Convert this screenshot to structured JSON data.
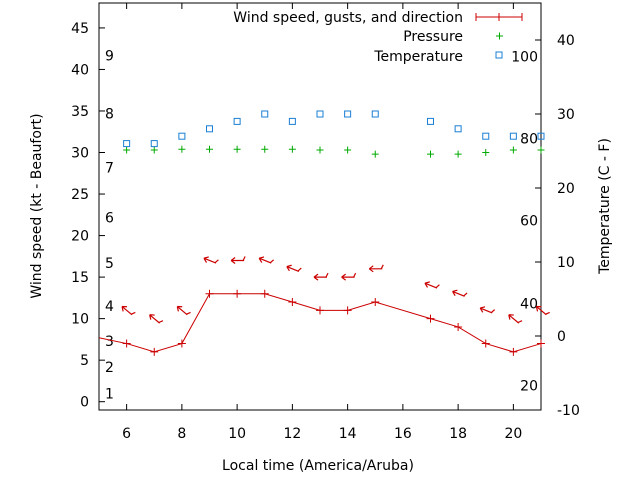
{
  "chart_data": {
    "type": "line",
    "xlabel": "Local time (America/Aruba)",
    "ylabel_left": "Wind speed (kt - Beaufort)",
    "ylabel_right": "Temperature (C - F)",
    "xlim": [
      5,
      21
    ],
    "ylim_left": [
      -1,
      48
    ],
    "ylim_right": [
      -10,
      45
    ],
    "x_ticks": [
      6,
      8,
      10,
      12,
      14,
      16,
      18,
      20
    ],
    "y_ticks_left": [
      0,
      5,
      10,
      15,
      20,
      25,
      30,
      35,
      40,
      45
    ],
    "y_ticks_right": [
      -10,
      0,
      10,
      20,
      30,
      40
    ],
    "beaufort_labels": [
      {
        "label": "1",
        "kt": 1.0
      },
      {
        "label": "2",
        "kt": 4.2
      },
      {
        "label": "3",
        "kt": 7.3
      },
      {
        "label": "4",
        "kt": 11.5
      },
      {
        "label": "5",
        "kt": 16.7
      },
      {
        "label": "6",
        "kt": 22.2
      },
      {
        "label": "7",
        "kt": 28.2
      },
      {
        "label": "8",
        "kt": 34.7
      },
      {
        "label": "9",
        "kt": 41.7
      }
    ],
    "fahrenheit_labels": [
      {
        "label": "20",
        "temp_c": -6.7
      },
      {
        "label": "40",
        "temp_c": 4.4
      },
      {
        "label": "60",
        "temp_c": 15.6
      },
      {
        "label": "80",
        "temp_c": 26.7
      },
      {
        "label": "100",
        "temp_c": 37.8
      }
    ],
    "series": [
      {
        "name": "Wind speed, gusts, and direction",
        "color": "#cc0000",
        "x": [
          5,
          6,
          7,
          8,
          9,
          10,
          11,
          12,
          13,
          14,
          15,
          17,
          18,
          19,
          20,
          21
        ],
        "values": [
          7.7,
          7,
          6,
          7,
          13,
          13,
          13,
          12,
          11,
          11,
          12,
          10,
          9,
          7,
          6,
          7
        ],
        "arrows": [
          {
            "x": 6,
            "kt": 11,
            "dir": "NW"
          },
          {
            "x": 7,
            "kt": 10,
            "dir": "NW"
          },
          {
            "x": 8,
            "kt": 11,
            "dir": "NW"
          },
          {
            "x": 9,
            "kt": 17,
            "dir": "WNW"
          },
          {
            "x": 10,
            "kt": 17,
            "dir": "W"
          },
          {
            "x": 11,
            "kt": 17,
            "dir": "WNW"
          },
          {
            "x": 12,
            "kt": 16,
            "dir": "WNW"
          },
          {
            "x": 13,
            "kt": 15,
            "dir": "W"
          },
          {
            "x": 14,
            "kt": 15,
            "dir": "W"
          },
          {
            "x": 15,
            "kt": 16,
            "dir": "W"
          },
          {
            "x": 17,
            "kt": 14,
            "dir": "WNW"
          },
          {
            "x": 18,
            "kt": 13,
            "dir": "WNW"
          },
          {
            "x": 19,
            "kt": 11,
            "dir": "WNW"
          },
          {
            "x": 20,
            "kt": 10,
            "dir": "NW"
          },
          {
            "x": 21,
            "kt": 11,
            "dir": "NW"
          }
        ]
      },
      {
        "name": "Pressure",
        "color": "#00aa00",
        "x": [
          6,
          7,
          8,
          9,
          10,
          11,
          12,
          13,
          14,
          15,
          17,
          18,
          19,
          20,
          21
        ],
        "values": [
          30.3,
          30.3,
          30.4,
          30.4,
          30.4,
          30.4,
          30.4,
          30.3,
          30.3,
          29.8,
          29.8,
          29.8,
          30.0,
          30.3,
          30.3
        ]
      },
      {
        "name": "Temperature",
        "color": "#1a7fd4",
        "x": [
          6,
          7,
          8,
          9,
          10,
          11,
          12,
          13,
          14,
          15,
          17,
          18,
          19,
          20,
          21
        ],
        "values": [
          26,
          26,
          27,
          28,
          29,
          30,
          29,
          30,
          30,
          30,
          29,
          28,
          27,
          27,
          27
        ]
      }
    ]
  }
}
